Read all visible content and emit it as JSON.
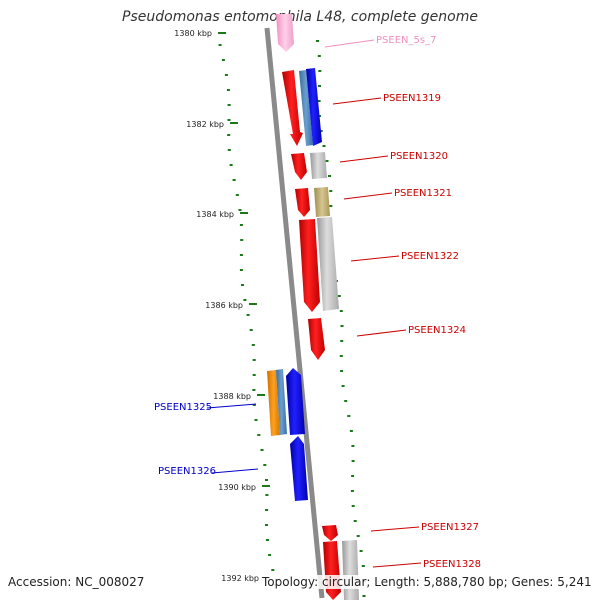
{
  "title": "Pseudomonas entomophila L48, complete genome",
  "accession": "Accession: NC_008027",
  "summary": "Topology: circular; Length: 5,888,780 bp; Genes: 5,241",
  "scale_ticks": [
    "1380 kbp",
    "1382 kbp",
    "1384 kbp",
    "1386 kbp",
    "1388 kbp",
    "1390 kbp",
    "1392 kbp"
  ],
  "gene_labels": [
    {
      "text": "PSEEN_5s_7",
      "color": "#f090c0"
    },
    {
      "text": "PSEEN1319",
      "color": "#cc0000"
    },
    {
      "text": "PSEEN1320",
      "color": "#cc0000"
    },
    {
      "text": "PSEEN1321",
      "color": "#cc0000"
    },
    {
      "text": "PSEEN1322",
      "color": "#cc0000"
    },
    {
      "text": "PSEEN1324",
      "color": "#cc0000"
    },
    {
      "text": "PSEEN1325",
      "color": "#0000cc"
    },
    {
      "text": "PSEEN1326",
      "color": "#0000cc"
    },
    {
      "text": "PSEEN1327",
      "color": "#cc0000"
    },
    {
      "text": "PSEEN1328",
      "color": "#cc0000"
    }
  ],
  "colors": {
    "forward_gene": "#ff0000",
    "reverse_gene": "#0000ff",
    "rna_gene": "#ffb0d8",
    "genome_line": "#888888",
    "gc_dots": "#1a7a1a"
  }
}
